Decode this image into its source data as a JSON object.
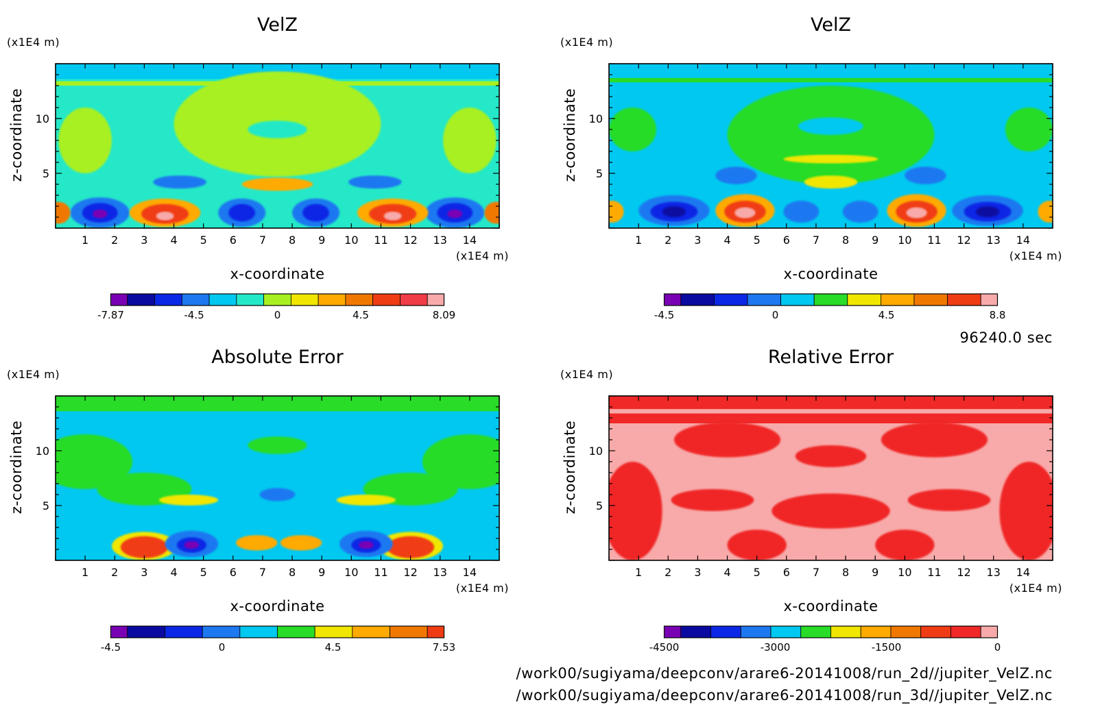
{
  "chart_data": [
    {
      "type": "heatmap",
      "title": "VelZ",
      "xlabel": "x-coordinate",
      "ylabel": "z-coordinate",
      "x_unit": "(x1E4 m)",
      "y_unit": "(x1E4 m)",
      "x_ticks": [
        "1",
        "2",
        "3",
        "4",
        "5",
        "6",
        "7",
        "8",
        "9",
        "10",
        "11",
        "12",
        "13",
        "14"
      ],
      "y_ticks": [
        "5",
        "10"
      ],
      "xlim": [
        0,
        15
      ],
      "ylim": [
        0,
        15
      ],
      "colorbar": {
        "colors": [
          "#7a00b4",
          "#0a0aa0",
          "#0a28e6",
          "#1e78f0",
          "#00c8f0",
          "#24e8c8",
          "#a8f020",
          "#f0e600",
          "#ffaa00",
          "#f07800",
          "#f03c14",
          "#f03c46",
          "#f8aaaa"
        ],
        "tick_labels": [
          "-7.87",
          "-4.5",
          "0",
          "4.5",
          "8.09"
        ]
      },
      "field": {
        "background": "#24e8c8",
        "features": [
          {
            "x": 7.5,
            "z": 9.5,
            "rx": 3.5,
            "rz": 4.8,
            "color": "#a8f020"
          },
          {
            "x": 1.0,
            "z": 8.0,
            "rx": 0.9,
            "rz": 3.0,
            "color": "#a8f020"
          },
          {
            "x": 14.0,
            "z": 8.0,
            "rx": 0.9,
            "rz": 3.0,
            "color": "#a8f020"
          },
          {
            "x": 7.5,
            "z": 9.0,
            "rx": 1.0,
            "rz": 0.8,
            "color": "#24e8c8"
          },
          {
            "x": 7.5,
            "z": 4.0,
            "rx": 1.2,
            "rz": 0.6,
            "color": "#ffaa00"
          },
          {
            "x": 4.2,
            "z": 4.2,
            "rx": 0.9,
            "rz": 0.6,
            "color": "#1e78f0"
          },
          {
            "x": 10.8,
            "z": 4.2,
            "rx": 0.9,
            "rz": 0.6,
            "color": "#1e78f0"
          },
          {
            "x": 1.5,
            "z": 1.4,
            "rx": 1.0,
            "rz": 1.4,
            "color": "#1e78f0"
          },
          {
            "x": 1.5,
            "z": 1.4,
            "rx": 0.6,
            "rz": 0.9,
            "color": "#0a28e6"
          },
          {
            "x": 1.5,
            "z": 1.3,
            "rx": 0.25,
            "rz": 0.4,
            "color": "#7a00b4"
          },
          {
            "x": 6.3,
            "z": 1.4,
            "rx": 0.8,
            "rz": 1.3,
            "color": "#1e78f0"
          },
          {
            "x": 6.3,
            "z": 1.4,
            "rx": 0.45,
            "rz": 0.8,
            "color": "#0a28e6"
          },
          {
            "x": 8.8,
            "z": 1.4,
            "rx": 0.8,
            "rz": 1.3,
            "color": "#1e78f0"
          },
          {
            "x": 8.8,
            "z": 1.4,
            "rx": 0.45,
            "rz": 0.8,
            "color": "#0a28e6"
          },
          {
            "x": 13.5,
            "z": 1.4,
            "rx": 1.0,
            "rz": 1.4,
            "color": "#1e78f0"
          },
          {
            "x": 13.5,
            "z": 1.4,
            "rx": 0.6,
            "rz": 0.9,
            "color": "#0a28e6"
          },
          {
            "x": 13.5,
            "z": 1.3,
            "rx": 0.25,
            "rz": 0.4,
            "color": "#7a00b4"
          },
          {
            "x": 3.7,
            "z": 1.4,
            "rx": 1.2,
            "rz": 1.3,
            "color": "#ffaa00"
          },
          {
            "x": 3.7,
            "z": 1.3,
            "rx": 0.8,
            "rz": 0.9,
            "color": "#f03c14"
          },
          {
            "x": 3.7,
            "z": 1.1,
            "rx": 0.3,
            "rz": 0.4,
            "color": "#f8aaaa"
          },
          {
            "x": 11.4,
            "z": 1.4,
            "rx": 1.2,
            "rz": 1.3,
            "color": "#ffaa00"
          },
          {
            "x": 11.4,
            "z": 1.3,
            "rx": 0.8,
            "rz": 0.9,
            "color": "#f03c14"
          },
          {
            "x": 11.4,
            "z": 1.1,
            "rx": 0.3,
            "rz": 0.4,
            "color": "#f8aaaa"
          },
          {
            "x": 0.1,
            "z": 1.4,
            "rx": 0.4,
            "rz": 1.0,
            "color": "#f07800"
          },
          {
            "x": 14.9,
            "z": 1.4,
            "rx": 0.4,
            "rz": 1.0,
            "color": "#f07800"
          }
        ],
        "bands": [
          {
            "z0": 13.6,
            "z1": 15.0,
            "color": "#00c8f0"
          },
          {
            "z0": 13.0,
            "z1": 13.4,
            "color": "#a8f020"
          }
        ]
      }
    },
    {
      "type": "heatmap",
      "title": "VelZ",
      "xlabel": "x-coordinate",
      "ylabel": "z-coordinate",
      "x_unit": "(x1E4 m)",
      "y_unit": "(x1E4 m)",
      "x_ticks": [
        "1",
        "2",
        "3",
        "4",
        "5",
        "6",
        "7",
        "8",
        "9",
        "10",
        "11",
        "12",
        "13",
        "14"
      ],
      "y_ticks": [
        "5",
        "10"
      ],
      "xlim": [
        0,
        15
      ],
      "ylim": [
        0,
        15
      ],
      "colorbar": {
        "colors": [
          "#7a00b4",
          "#0a0aa0",
          "#0a28e6",
          "#1e78f0",
          "#00c8f0",
          "#28dc28",
          "#f0e600",
          "#ffaa00",
          "#f07800",
          "#f03c14",
          "#f8aaaa"
        ],
        "tick_labels": [
          "-4.5",
          "0",
          "4.5",
          "8.8"
        ]
      },
      "field": {
        "background": "#00c8f0",
        "features": [
          {
            "x": 7.5,
            "z": 8.5,
            "rx": 3.5,
            "rz": 4.5,
            "color": "#28dc28"
          },
          {
            "x": 0.8,
            "z": 9.0,
            "rx": 0.8,
            "rz": 2.0,
            "color": "#28dc28"
          },
          {
            "x": 14.2,
            "z": 9.0,
            "rx": 0.8,
            "rz": 2.0,
            "color": "#28dc28"
          },
          {
            "x": 7.5,
            "z": 9.3,
            "rx": 1.1,
            "rz": 0.8,
            "color": "#00c8f0"
          },
          {
            "x": 7.5,
            "z": 6.3,
            "rx": 1.6,
            "rz": 0.4,
            "color": "#f0e600"
          },
          {
            "x": 7.5,
            "z": 4.2,
            "rx": 0.9,
            "rz": 0.6,
            "color": "#f0e600"
          },
          {
            "x": 4.3,
            "z": 4.8,
            "rx": 0.7,
            "rz": 0.8,
            "color": "#1e78f0"
          },
          {
            "x": 10.7,
            "z": 4.8,
            "rx": 0.7,
            "rz": 0.8,
            "color": "#1e78f0"
          },
          {
            "x": 2.2,
            "z": 1.6,
            "rx": 1.2,
            "rz": 1.4,
            "color": "#1e78f0"
          },
          {
            "x": 2.2,
            "z": 1.5,
            "rx": 0.8,
            "rz": 0.9,
            "color": "#0a28e6"
          },
          {
            "x": 2.2,
            "z": 1.5,
            "rx": 0.4,
            "rz": 0.5,
            "color": "#0a0aa0"
          },
          {
            "x": 12.8,
            "z": 1.6,
            "rx": 1.2,
            "rz": 1.4,
            "color": "#1e78f0"
          },
          {
            "x": 12.8,
            "z": 1.5,
            "rx": 0.8,
            "rz": 0.9,
            "color": "#0a28e6"
          },
          {
            "x": 12.8,
            "z": 1.5,
            "rx": 0.4,
            "rz": 0.5,
            "color": "#0a0aa0"
          },
          {
            "x": 6.5,
            "z": 1.5,
            "rx": 0.6,
            "rz": 1.0,
            "color": "#1e78f0"
          },
          {
            "x": 8.5,
            "z": 1.5,
            "rx": 0.6,
            "rz": 1.0,
            "color": "#1e78f0"
          },
          {
            "x": 4.6,
            "z": 1.6,
            "rx": 1.0,
            "rz": 1.5,
            "color": "#ffaa00"
          },
          {
            "x": 4.6,
            "z": 1.5,
            "rx": 0.7,
            "rz": 1.0,
            "color": "#f03c14"
          },
          {
            "x": 4.6,
            "z": 1.4,
            "rx": 0.35,
            "rz": 0.5,
            "color": "#f8aaaa"
          },
          {
            "x": 10.4,
            "z": 1.6,
            "rx": 1.0,
            "rz": 1.5,
            "color": "#ffaa00"
          },
          {
            "x": 10.4,
            "z": 1.5,
            "rx": 0.7,
            "rz": 1.0,
            "color": "#f03c14"
          },
          {
            "x": 10.4,
            "z": 1.4,
            "rx": 0.35,
            "rz": 0.5,
            "color": "#f8aaaa"
          },
          {
            "x": 0.1,
            "z": 1.5,
            "rx": 0.4,
            "rz": 1.0,
            "color": "#ffaa00"
          },
          {
            "x": 14.9,
            "z": 1.5,
            "rx": 0.4,
            "rz": 1.0,
            "color": "#ffaa00"
          }
        ],
        "bands": [
          {
            "z0": 13.8,
            "z1": 15.0,
            "color": "#00c8f0"
          },
          {
            "z0": 13.3,
            "z1": 13.7,
            "color": "#28dc28"
          }
        ]
      }
    },
    {
      "type": "heatmap",
      "title": "Absolute Error",
      "xlabel": "x-coordinate",
      "ylabel": "z-coordinate",
      "x_unit": "(x1E4 m)",
      "y_unit": "(x1E4 m)",
      "x_ticks": [
        "1",
        "2",
        "3",
        "4",
        "5",
        "6",
        "7",
        "8",
        "9",
        "10",
        "11",
        "12",
        "13",
        "14"
      ],
      "y_ticks": [
        "5",
        "10"
      ],
      "xlim": [
        0,
        15
      ],
      "ylim": [
        0,
        15
      ],
      "colorbar": {
        "colors": [
          "#7a00b4",
          "#0a0aa0",
          "#0a28e6",
          "#1e78f0",
          "#00c8f0",
          "#28dc28",
          "#f0e600",
          "#ffaa00",
          "#f07800",
          "#f03c14"
        ],
        "tick_labels": [
          "-4.5",
          "0",
          "4.5",
          "7.53"
        ]
      },
      "field": {
        "background": "#00c8f0",
        "features": [
          {
            "x": 1.0,
            "z": 9.0,
            "rx": 1.6,
            "rz": 2.5,
            "color": "#28dc28"
          },
          {
            "x": 14.0,
            "z": 9.0,
            "rx": 1.6,
            "rz": 2.5,
            "color": "#28dc28"
          },
          {
            "x": 3.0,
            "z": 6.5,
            "rx": 1.6,
            "rz": 1.5,
            "color": "#28dc28"
          },
          {
            "x": 12.0,
            "z": 6.5,
            "rx": 1.6,
            "rz": 1.5,
            "color": "#28dc28"
          },
          {
            "x": 7.5,
            "z": 10.5,
            "rx": 1.0,
            "rz": 0.8,
            "color": "#28dc28"
          },
          {
            "x": 4.5,
            "z": 5.5,
            "rx": 1.0,
            "rz": 0.5,
            "color": "#f0e600"
          },
          {
            "x": 10.5,
            "z": 5.5,
            "rx": 1.0,
            "rz": 0.5,
            "color": "#f0e600"
          },
          {
            "x": 7.5,
            "z": 6.0,
            "rx": 0.6,
            "rz": 0.6,
            "color": "#1e78f0"
          },
          {
            "x": 3.0,
            "z": 1.3,
            "rx": 1.1,
            "rz": 1.3,
            "color": "#f0e600"
          },
          {
            "x": 3.0,
            "z": 1.2,
            "rx": 0.8,
            "rz": 1.0,
            "color": "#f03c14"
          },
          {
            "x": 12.0,
            "z": 1.3,
            "rx": 1.1,
            "rz": 1.3,
            "color": "#f0e600"
          },
          {
            "x": 12.0,
            "z": 1.2,
            "rx": 0.8,
            "rz": 1.0,
            "color": "#f03c14"
          },
          {
            "x": 4.6,
            "z": 1.5,
            "rx": 0.9,
            "rz": 1.2,
            "color": "#1e78f0"
          },
          {
            "x": 4.6,
            "z": 1.4,
            "rx": 0.5,
            "rz": 0.7,
            "color": "#0a28e6"
          },
          {
            "x": 4.6,
            "z": 1.4,
            "rx": 0.25,
            "rz": 0.35,
            "color": "#7a00b4"
          },
          {
            "x": 10.5,
            "z": 1.5,
            "rx": 0.9,
            "rz": 1.2,
            "color": "#1e78f0"
          },
          {
            "x": 10.5,
            "z": 1.4,
            "rx": 0.5,
            "rz": 0.7,
            "color": "#0a28e6"
          },
          {
            "x": 10.5,
            "z": 1.4,
            "rx": 0.25,
            "rz": 0.35,
            "color": "#7a00b4"
          },
          {
            "x": 6.8,
            "z": 1.6,
            "rx": 0.7,
            "rz": 0.7,
            "color": "#ffaa00"
          },
          {
            "x": 8.3,
            "z": 1.6,
            "rx": 0.7,
            "rz": 0.7,
            "color": "#ffaa00"
          }
        ],
        "bands": [
          {
            "z0": 13.6,
            "z1": 15.0,
            "color": "#28dc28"
          },
          {
            "z0": 12.2,
            "z1": 13.5,
            "color": "#00c8f0"
          }
        ]
      }
    },
    {
      "type": "heatmap",
      "title": "Relative Error",
      "xlabel": "x-coordinate",
      "ylabel": "z-coordinate",
      "x_unit": "(x1E4 m)",
      "y_unit": "(x1E4 m)",
      "x_ticks": [
        "1",
        "2",
        "3",
        "4",
        "5",
        "6",
        "7",
        "8",
        "9",
        "10",
        "11",
        "12",
        "13",
        "14"
      ],
      "y_ticks": [
        "5",
        "10"
      ],
      "xlim": [
        0,
        15
      ],
      "ylim": [
        0,
        15
      ],
      "colorbar": {
        "colors": [
          "#7a00b4",
          "#0a0aa0",
          "#0a28e6",
          "#1e78f0",
          "#00c8f0",
          "#28dc28",
          "#f0e600",
          "#ffaa00",
          "#f07800",
          "#f03c14",
          "#f02828",
          "#f8aaaa"
        ],
        "tick_labels": [
          "-4500",
          "-3000",
          "-1500",
          "0"
        ]
      },
      "field": {
        "background": "#f8aaaa",
        "features": [
          {
            "x": 0.8,
            "z": 4.5,
            "rx": 1.0,
            "rz": 4.5,
            "color": "#f02828"
          },
          {
            "x": 14.2,
            "z": 4.5,
            "rx": 1.0,
            "rz": 4.5,
            "color": "#f02828"
          },
          {
            "x": 4.0,
            "z": 11.0,
            "rx": 1.8,
            "rz": 1.6,
            "color": "#f02828"
          },
          {
            "x": 11.0,
            "z": 11.0,
            "rx": 1.8,
            "rz": 1.6,
            "color": "#f02828"
          },
          {
            "x": 7.5,
            "z": 9.5,
            "rx": 1.2,
            "rz": 1.0,
            "color": "#f02828"
          },
          {
            "x": 7.5,
            "z": 4.5,
            "rx": 2.0,
            "rz": 1.6,
            "color": "#f02828"
          },
          {
            "x": 3.5,
            "z": 5.5,
            "rx": 1.4,
            "rz": 1.0,
            "color": "#f02828"
          },
          {
            "x": 11.5,
            "z": 5.5,
            "rx": 1.4,
            "rz": 1.0,
            "color": "#f02828"
          },
          {
            "x": 5.0,
            "z": 1.4,
            "rx": 1.0,
            "rz": 1.4,
            "color": "#f02828"
          },
          {
            "x": 10.0,
            "z": 1.4,
            "rx": 1.0,
            "rz": 1.4,
            "color": "#f02828"
          },
          {
            "x": 7.5,
            "z": 7.0,
            "rx": 0.8,
            "rz": 0.7,
            "color": "#f8aaaa"
          }
        ],
        "bands": [
          {
            "z0": 13.8,
            "z1": 15.0,
            "color": "#f02828"
          },
          {
            "z0": 12.5,
            "z1": 13.4,
            "color": "#f02828"
          }
        ]
      }
    }
  ],
  "info": {
    "time": "96240.0 sec",
    "file1": "/work00/sugiyama/deepconv/arare6-20141008/run_2d//jupiter_VelZ.nc",
    "file2": "/work00/sugiyama/deepconv/arare6-20141008/run_3d//jupiter_VelZ.nc"
  }
}
